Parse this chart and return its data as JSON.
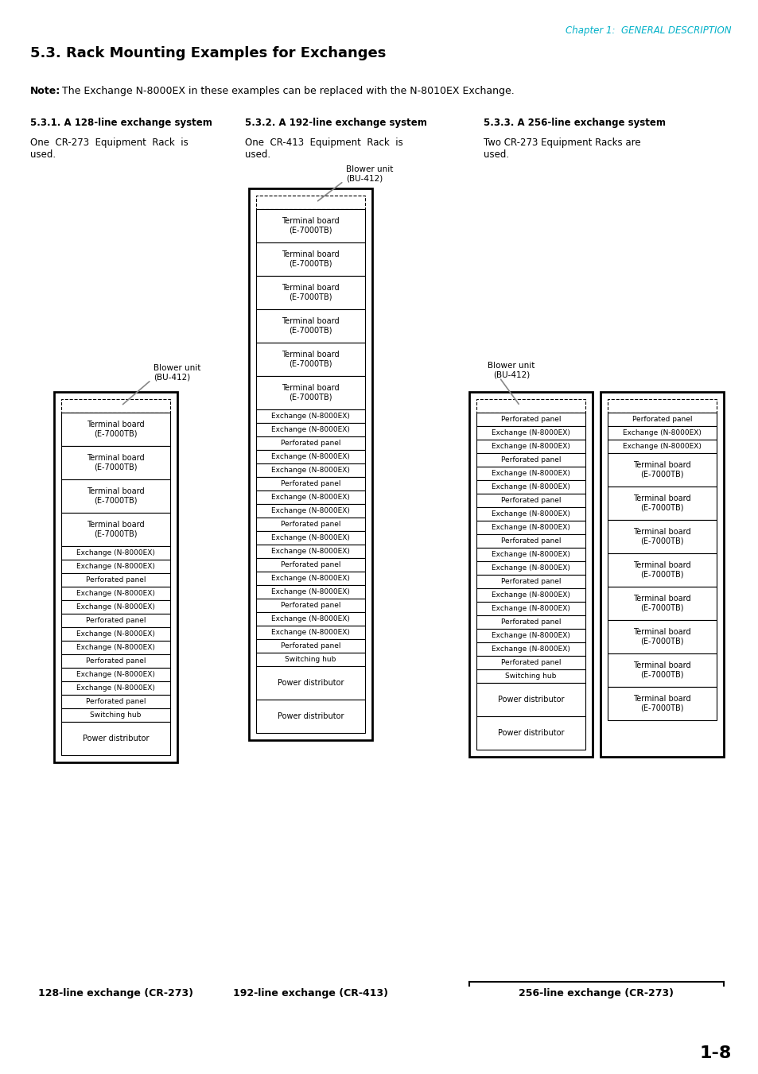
{
  "title": "5.3. Rack Mounting Examples for Exchanges",
  "chapter_header": "Chapter 1:  GENERAL DESCRIPTION",
  "note_bold": "Note:",
  "note_rest": " The Exchange N-8000EX in these examples can be replaced with the N-8010EX Exchange.",
  "section_headers": [
    "5.3.1. A 128-line exchange system",
    "5.3.2. A 192-line exchange system",
    "5.3.3. A 256-line exchange system"
  ],
  "descriptions": [
    "One  CR-273  Equipment  Rack  is\nused.",
    "One  CR-413  Equipment  Rack  is\nused.",
    "Two CR-273 Equipment Racks are\nused."
  ],
  "bottom_labels": [
    "128-line exchange (CR-273)",
    "192-line exchange (CR-413)",
    "256-line exchange (CR-273)"
  ],
  "page_number": "1-8",
  "rack1_items": [
    {
      "text": "Terminal board\n(E-7000TB)",
      "type": "large"
    },
    {
      "text": "Terminal board\n(E-7000TB)",
      "type": "large"
    },
    {
      "text": "Terminal board\n(E-7000TB)",
      "type": "large"
    },
    {
      "text": "Terminal board\n(E-7000TB)",
      "type": "large"
    },
    {
      "text": "Exchange (N-8000EX)",
      "type": "small"
    },
    {
      "text": "Exchange (N-8000EX)",
      "type": "small"
    },
    {
      "text": "Perforated panel",
      "type": "small"
    },
    {
      "text": "Exchange (N-8000EX)",
      "type": "small"
    },
    {
      "text": "Exchange (N-8000EX)",
      "type": "small"
    },
    {
      "text": "Perforated panel",
      "type": "small"
    },
    {
      "text": "Exchange (N-8000EX)",
      "type": "small"
    },
    {
      "text": "Exchange (N-8000EX)",
      "type": "small"
    },
    {
      "text": "Perforated panel",
      "type": "small"
    },
    {
      "text": "Exchange (N-8000EX)",
      "type": "small"
    },
    {
      "text": "Exchange (N-8000EX)",
      "type": "small"
    },
    {
      "text": "Perforated panel",
      "type": "small"
    },
    {
      "text": "Switching hub",
      "type": "small"
    },
    {
      "text": "Power distributor",
      "type": "large"
    }
  ],
  "rack2_items": [
    {
      "text": "Terminal board\n(E-7000TB)",
      "type": "large"
    },
    {
      "text": "Terminal board\n(E-7000TB)",
      "type": "large"
    },
    {
      "text": "Terminal board\n(E-7000TB)",
      "type": "large"
    },
    {
      "text": "Terminal board\n(E-7000TB)",
      "type": "large"
    },
    {
      "text": "Terminal board\n(E-7000TB)",
      "type": "large"
    },
    {
      "text": "Terminal board\n(E-7000TB)",
      "type": "large"
    },
    {
      "text": "Exchange (N-8000EX)",
      "type": "small"
    },
    {
      "text": "Exchange (N-8000EX)",
      "type": "small"
    },
    {
      "text": "Perforated panel",
      "type": "small"
    },
    {
      "text": "Exchange (N-8000EX)",
      "type": "small"
    },
    {
      "text": "Exchange (N-8000EX)",
      "type": "small"
    },
    {
      "text": "Perforated panel",
      "type": "small"
    },
    {
      "text": "Exchange (N-8000EX)",
      "type": "small"
    },
    {
      "text": "Exchange (N-8000EX)",
      "type": "small"
    },
    {
      "text": "Perforated panel",
      "type": "small"
    },
    {
      "text": "Exchange (N-8000EX)",
      "type": "small"
    },
    {
      "text": "Exchange (N-8000EX)",
      "type": "small"
    },
    {
      "text": "Perforated panel",
      "type": "small"
    },
    {
      "text": "Exchange (N-8000EX)",
      "type": "small"
    },
    {
      "text": "Exchange (N-8000EX)",
      "type": "small"
    },
    {
      "text": "Perforated panel",
      "type": "small"
    },
    {
      "text": "Exchange (N-8000EX)",
      "type": "small"
    },
    {
      "text": "Exchange (N-8000EX)",
      "type": "small"
    },
    {
      "text": "Perforated panel",
      "type": "small"
    },
    {
      "text": "Switching hub",
      "type": "small"
    },
    {
      "text": "Power distributor",
      "type": "large"
    },
    {
      "text": "Power distributor",
      "type": "large"
    }
  ],
  "rack3a_items": [
    {
      "text": "Perforated panel",
      "type": "small"
    },
    {
      "text": "Exchange (N-8000EX)",
      "type": "small"
    },
    {
      "text": "Exchange (N-8000EX)",
      "type": "small"
    },
    {
      "text": "Perforated panel",
      "type": "small"
    },
    {
      "text": "Exchange (N-8000EX)",
      "type": "small"
    },
    {
      "text": "Exchange (N-8000EX)",
      "type": "small"
    },
    {
      "text": "Perforated panel",
      "type": "small"
    },
    {
      "text": "Exchange (N-8000EX)",
      "type": "small"
    },
    {
      "text": "Exchange (N-8000EX)",
      "type": "small"
    },
    {
      "text": "Perforated panel",
      "type": "small"
    },
    {
      "text": "Exchange (N-8000EX)",
      "type": "small"
    },
    {
      "text": "Exchange (N-8000EX)",
      "type": "small"
    },
    {
      "text": "Perforated panel",
      "type": "small"
    },
    {
      "text": "Exchange (N-8000EX)",
      "type": "small"
    },
    {
      "text": "Exchange (N-8000EX)",
      "type": "small"
    },
    {
      "text": "Perforated panel",
      "type": "small"
    },
    {
      "text": "Exchange (N-8000EX)",
      "type": "small"
    },
    {
      "text": "Exchange (N-8000EX)",
      "type": "small"
    },
    {
      "text": "Perforated panel",
      "type": "small"
    },
    {
      "text": "Switching hub",
      "type": "small"
    },
    {
      "text": "Power distributor",
      "type": "large"
    },
    {
      "text": "Power distributor",
      "type": "large"
    }
  ],
  "rack3b_items": [
    {
      "text": "Perforated panel",
      "type": "small"
    },
    {
      "text": "Exchange (N-8000EX)",
      "type": "small"
    },
    {
      "text": "Exchange (N-8000EX)",
      "type": "small"
    },
    {
      "text": "Terminal board\n(E-7000TB)",
      "type": "large"
    },
    {
      "text": "Terminal board\n(E-7000TB)",
      "type": "large"
    },
    {
      "text": "Terminal board\n(E-7000TB)",
      "type": "large"
    },
    {
      "text": "Terminal board\n(E-7000TB)",
      "type": "large"
    },
    {
      "text": "Terminal board\n(E-7000TB)",
      "type": "large"
    },
    {
      "text": "Terminal board\n(E-7000TB)",
      "type": "large"
    },
    {
      "text": "Terminal board\n(E-7000TB)",
      "type": "large"
    },
    {
      "text": "Terminal board\n(E-7000TB)",
      "type": "large"
    }
  ],
  "background_color": "#ffffff",
  "text_color": "#000000",
  "chapter_color": "#00b0c8"
}
